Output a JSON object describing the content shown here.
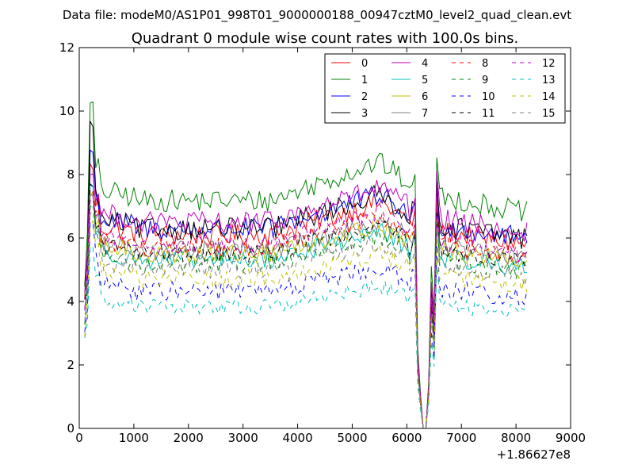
{
  "chart_data": {
    "type": "line",
    "suptitle": "Data file: modeM0/AS1P01_998T01_9000000188_00947cztM0_level2_quad_clean.evt",
    "title": "Quadrant 0 module wise count rates with 100.0s bins.",
    "xlabel": "",
    "ylabel": "",
    "x_offset_label": "+1.86627e8",
    "xlim": [
      0,
      9000
    ],
    "ylim": [
      0,
      12
    ],
    "xticks": [
      0,
      1000,
      2000,
      3000,
      4000,
      5000,
      6000,
      7000,
      8000,
      9000
    ],
    "xtick_labels": [
      "0",
      "1000",
      "2000",
      "3000",
      "4000",
      "5000",
      "6000",
      "7000",
      "8000",
      "9000"
    ],
    "yticks": [
      0,
      2,
      4,
      6,
      8,
      10,
      12
    ],
    "ytick_labels": [
      "0",
      "2",
      "4",
      "6",
      "8",
      "10",
      "12"
    ],
    "legend_position": "top-right",
    "x_start": 100,
    "x_step": 50,
    "x_end": 8200,
    "gap_start": 6250,
    "gap_end": 6450,
    "series": [
      {
        "name": "0",
        "color": "#ff0000",
        "dash": "solid",
        "base": 6.2,
        "peak": 8.4,
        "amp": 0.35
      },
      {
        "name": "1",
        "color": "#008000",
        "dash": "solid",
        "base": 7.3,
        "peak": 10.5,
        "amp": 0.35
      },
      {
        "name": "2",
        "color": "#0000ff",
        "dash": "solid",
        "base": 6.4,
        "peak": 8.9,
        "amp": 0.35
      },
      {
        "name": "3",
        "color": "#000000",
        "dash": "solid",
        "base": 6.4,
        "peak": 9.7,
        "amp": 0.35
      },
      {
        "name": "4",
        "color": "#bf00bf",
        "dash": "solid",
        "base": 6.6,
        "peak": 8.2,
        "amp": 0.35
      },
      {
        "name": "5",
        "color": "#00bfbf",
        "dash": "solid",
        "base": 5.4,
        "peak": 7.8,
        "amp": 0.3
      },
      {
        "name": "6",
        "color": "#bfbf00",
        "dash": "solid",
        "base": 5.6,
        "peak": 7.6,
        "amp": 0.3
      },
      {
        "name": "7",
        "color": "#808080",
        "dash": "solid",
        "base": 5.7,
        "peak": 7.5,
        "amp": 0.3
      },
      {
        "name": "8",
        "color": "#ff0000",
        "dash": "dashed",
        "base": 5.8,
        "peak": 7.6,
        "amp": 0.3
      },
      {
        "name": "9",
        "color": "#008000",
        "dash": "dashed",
        "base": 5.3,
        "peak": 7.2,
        "amp": 0.3
      },
      {
        "name": "10",
        "color": "#0000ff",
        "dash": "dashed",
        "base": 4.4,
        "peak": 6.6,
        "amp": 0.3
      },
      {
        "name": "11",
        "color": "#000000",
        "dash": "dashed",
        "base": 5.6,
        "peak": 7.7,
        "amp": 0.3
      },
      {
        "name": "12",
        "color": "#bf00bf",
        "dash": "dashed",
        "base": 5.9,
        "peak": 7.4,
        "amp": 0.3
      },
      {
        "name": "13",
        "color": "#00bfbf",
        "dash": "dashed",
        "base": 3.9,
        "peak": 5.8,
        "amp": 0.25
      },
      {
        "name": "14",
        "color": "#bfbf00",
        "dash": "dashed",
        "base": 4.8,
        "peak": 6.6,
        "amp": 0.3
      },
      {
        "name": "15",
        "color": "#808080",
        "dash": "dashed",
        "base": 5.1,
        "peak": 6.9,
        "amp": 0.3
      }
    ]
  }
}
